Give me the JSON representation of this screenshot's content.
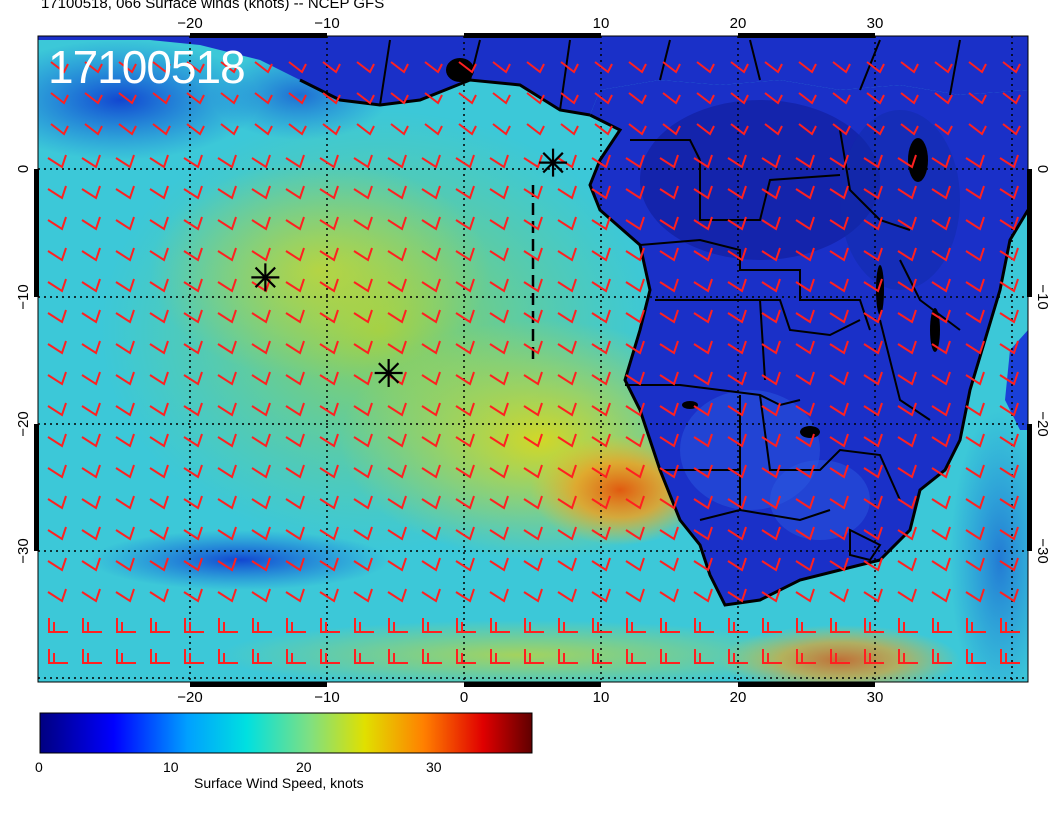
{
  "title": "17100518, 066 Surface winds (knots) -- NCEP GFS",
  "stamp": "17100518",
  "lon_ticks": [
    "−20",
    "−10",
    "0",
    "10",
    "20",
    "30"
  ],
  "lat_ticks": [
    "0",
    "−10",
    "−20",
    "−30"
  ],
  "colorbar": {
    "title": "Surface Wind Speed, knots",
    "ticks": [
      "0",
      "10",
      "20",
      "30"
    ],
    "colors": [
      "#000080",
      "#0000ff",
      "#00a0ff",
      "#00e0e0",
      "#80e080",
      "#e0e000",
      "#ff8000",
      "#e00000",
      "#600000"
    ]
  },
  "markers": [
    {
      "name": "marker-1",
      "lon": 6.5,
      "lat": 0.5
    },
    {
      "name": "marker-2",
      "lon": -14.5,
      "lat": -8.5
    },
    {
      "name": "marker-3",
      "lon": -5.5,
      "lat": -16.0
    }
  ],
  "colors": {
    "barb": "#ff2020",
    "land": "#1a30c8",
    "ocean_mid": "#8ec84a"
  }
}
